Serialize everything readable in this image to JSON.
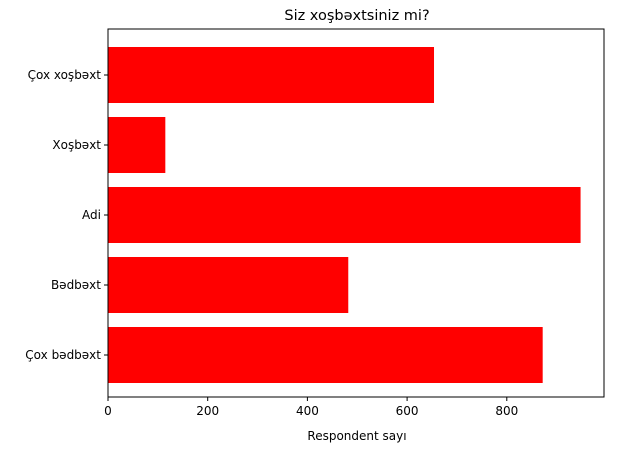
{
  "chart_data": {
    "type": "bar",
    "orientation": "horizontal",
    "title": "Siz xoşbəxtsiniz mi?",
    "xlabel": "Respondent sayı",
    "ylabel": "",
    "categories": [
      "Çox xoşbəxt",
      "Xoşbəxt",
      "Adi",
      "Bədbəxt",
      "Çox bədbəxt"
    ],
    "values": [
      654,
      115,
      948,
      482,
      872
    ],
    "xlim": [
      0,
      995
    ],
    "xticks": [
      0,
      200,
      400,
      600,
      800
    ],
    "grid": false,
    "legend": "none",
    "bar_color": "#ff0000"
  }
}
